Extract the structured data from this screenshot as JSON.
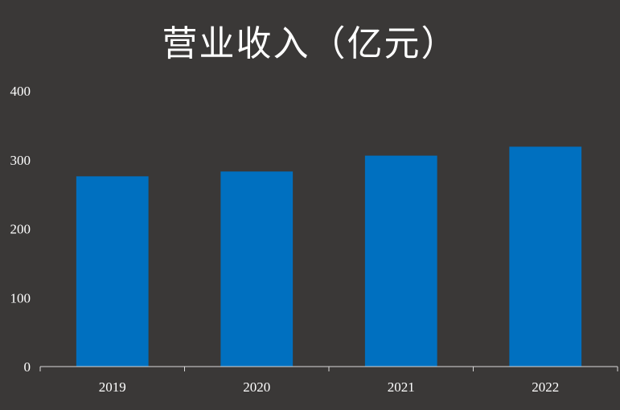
{
  "chart_data": {
    "type": "bar",
    "title": "营业收入（亿元）",
    "categories": [
      "2019",
      "2020",
      "2021",
      "2022"
    ],
    "values": [
      276,
      283,
      306,
      319
    ],
    "ylim": [
      0,
      400
    ],
    "yticks": [
      0,
      100,
      200,
      300,
      400
    ],
    "xlabel": "",
    "ylabel": "",
    "grid": false,
    "legend": "none",
    "colors": {
      "bar": "#0070c0",
      "background": "#3a3837",
      "text": "#ffffff",
      "axis": "#d9d9d9"
    }
  }
}
